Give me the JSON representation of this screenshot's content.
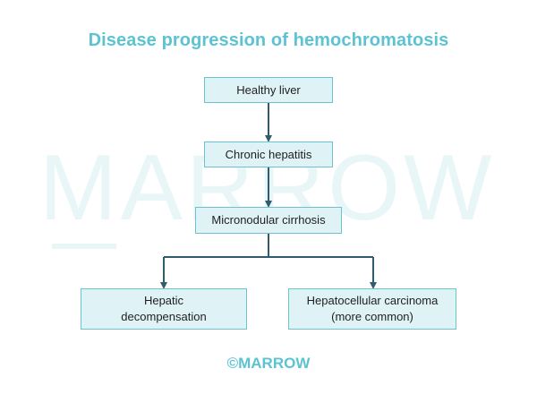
{
  "title": "Disease progression of hemochromatosis",
  "watermark": "MARROW",
  "nodes": {
    "healthy_liver": "Healthy liver",
    "chronic_hepatitis": "Chronic hepatitis",
    "micronodular_cirrhosis": "Micronodular cirrhosis",
    "hepatic_decompensation": "Hepatic\ndecompensation",
    "hepatocellular_carcinoma": "Hepatocellular carcinoma\n(more common)"
  },
  "copyright": "©MARROW",
  "colors": {
    "title": "#5cc3d2",
    "node_fill": "#dff3f7",
    "node_border": "#6cc2d1",
    "arrow": "#2f5d6b"
  }
}
